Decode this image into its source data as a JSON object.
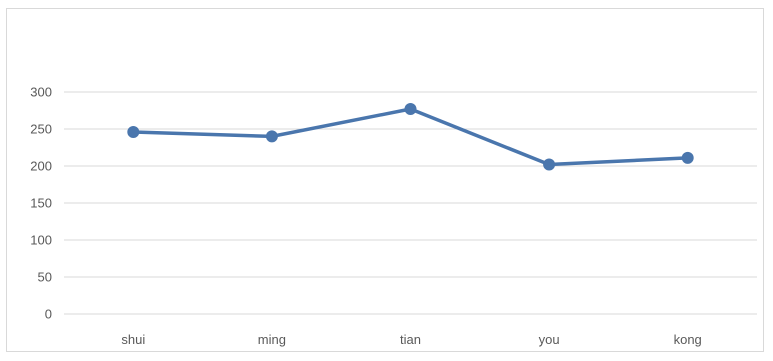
{
  "chart_data": {
    "type": "line",
    "categories": [
      "shui",
      "ming",
      "tian",
      "you",
      "kong"
    ],
    "series": [
      {
        "values": [
          246,
          240,
          277,
          202,
          211
        ],
        "color": "#4a76ad"
      }
    ],
    "ylim": [
      0,
      300
    ],
    "yticks": [
      0,
      50,
      100,
      150,
      200,
      250,
      300
    ],
    "grid": true,
    "legend": "none",
    "marker": "circle",
    "gridline_color": "#d9d9d9",
    "tick_label_color": "#595959"
  }
}
